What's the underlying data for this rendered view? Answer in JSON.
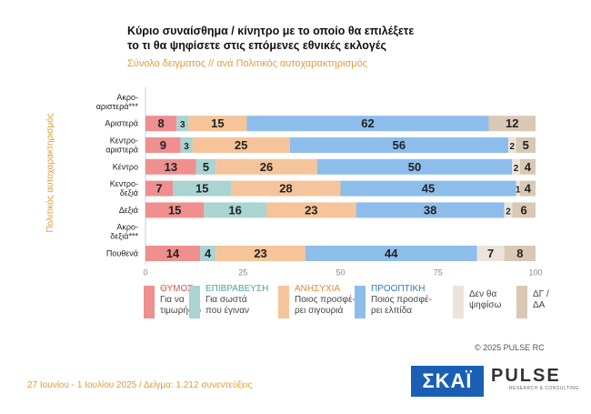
{
  "title_line1": "Κύριο συναίσθημα / κίνητρο με το οποίο θα επιλέξετε",
  "title_line2": "το τι θα ψηφίσετε στις επόμενες εθνικές εκλογές",
  "subtitle": "Σύνολο δειγματος // ανά Πολιτικός αυτοχαρακτηρισμός",
  "copyright": "© 2025 PULSE RC",
  "footer": "27 Ιουνίου - 1 Ιουλίου 2025  /  Δείγμα:  1.212 συνεντεύξεις",
  "logo_skai": "ΣΚΑΪ",
  "logo_pulse": "PULSE",
  "logo_pulse_sub": "RESEARCH & CONSULTING",
  "chart_data": {
    "type": "bar",
    "stacked": true,
    "orientation": "horizontal",
    "ylabel": "Πολιτικός αυτοχαρακτηρισμός",
    "xlim": [
      0,
      100
    ],
    "xticks": [
      "0",
      "25",
      "50",
      "75",
      "100"
    ],
    "categories": [
      [
        "Ακρο-",
        "αριστερά***"
      ],
      [
        "Αριστερά"
      ],
      [
        "Κεντρο-",
        "αριστερά"
      ],
      [
        "Κέντρο"
      ],
      [
        "Κεντρο-",
        "δεξιά"
      ],
      [
        "Δεξιά"
      ],
      [
        "Ακρο-",
        "δεξιά***"
      ],
      [
        "Πουθενά"
      ]
    ],
    "series": [
      {
        "name": "ΘΥΜΟΣ",
        "sub": [
          "Για να",
          "τιμωρήσω"
        ],
        "color": "#ef8f8f",
        "values": [
          null,
          8,
          9,
          13,
          7,
          15,
          null,
          14
        ]
      },
      {
        "name": "ΕΠΙΒΡΑΒΕΥΣΗ",
        "sub": [
          "Για σωστά",
          "που έγιναν"
        ],
        "color": "#a9d4d2",
        "values": [
          null,
          3,
          3,
          5,
          15,
          16,
          null,
          4
        ]
      },
      {
        "name": "ΑΝΗΣΥΧΙΑ",
        "sub": [
          "Ποιος προσφέ-",
          "ρει σιγουριά"
        ],
        "color": "#f5c49a",
        "values": [
          null,
          15,
          25,
          26,
          28,
          23,
          null,
          23
        ]
      },
      {
        "name": "ΠΡΟΟΠΤΙΚΗ",
        "sub": [
          "Ποιος προσφέ-",
          "ρει ελπίδα"
        ],
        "color": "#8dbdea",
        "values": [
          null,
          62,
          56,
          50,
          45,
          38,
          null,
          44
        ]
      },
      {
        "name": "",
        "sub": [
          "Δεν θα",
          "ψηφίσω"
        ],
        "color": "#ece4da",
        "values": [
          null,
          null,
          2,
          2,
          1,
          2,
          null,
          7
        ]
      },
      {
        "name": "",
        "sub": [
          "ΔΓ /",
          "ΔΑ"
        ],
        "color": "#d9c8b4",
        "values": [
          null,
          12,
          5,
          4,
          4,
          6,
          null,
          8
        ]
      }
    ]
  }
}
